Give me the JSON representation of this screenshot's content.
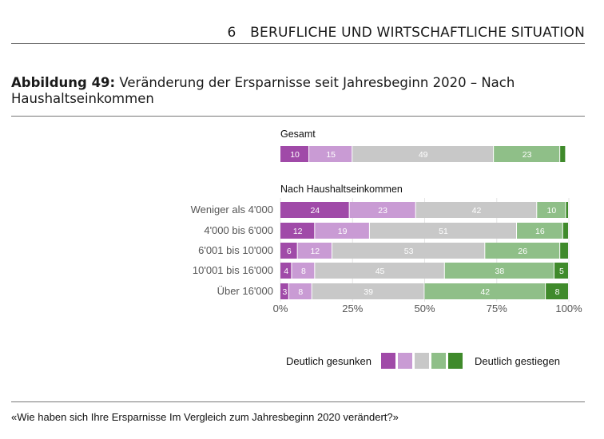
{
  "header": {
    "chapter_number": "6",
    "chapter_title": "BERUFLICHE UND WIRTSCHAFTLICHE SITUATION"
  },
  "figure": {
    "label": "Abbildung 49:",
    "title": "Veränderung der Ersparnisse seit Jahresbeginn 2020 – Nach Haushaltseinkommen"
  },
  "question": "«Wie haben sich Ihre Ersparnisse Im Vergleich zum Jahresbeginn 2020 verändert?»",
  "legend": {
    "left_label": "Deutlich gesunken",
    "right_label": "Deutlich gestiegen",
    "colors": [
      "#a04aa8",
      "#c99bd4",
      "#c8c8c8",
      "#8fbf88",
      "#3f8a2b"
    ]
  },
  "chart_data": {
    "type": "bar",
    "orientation": "horizontal-stacked-percent",
    "xlim": [
      0,
      100
    ],
    "xticks": [
      "0%",
      "25%",
      "50%",
      "75%",
      "100%"
    ],
    "colors": [
      "#a04aa8",
      "#c99bd4",
      "#c8c8c8",
      "#8fbf88",
      "#3f8a2b"
    ],
    "groups": [
      {
        "title": "Gesamt",
        "rows": [
          {
            "label": "",
            "values": [
              10,
              15,
              49,
              23,
              2
            ],
            "labels": [
              "10",
              "15",
              "49",
              "23",
              ""
            ]
          }
        ]
      },
      {
        "title": "Nach Haushaltseinkommen",
        "rows": [
          {
            "label": "Weniger als 4'000",
            "values": [
              24,
              23,
              42,
              10,
              1
            ],
            "labels": [
              "24",
              "23",
              "42",
              "10",
              ""
            ]
          },
          {
            "label": "4'000 bis 6'000",
            "values": [
              12,
              19,
              51,
              16,
              2
            ],
            "labels": [
              "12",
              "19",
              "51",
              "16",
              ""
            ]
          },
          {
            "label": "6'001 bis 10'000",
            "values": [
              6,
              12,
              53,
              26,
              3
            ],
            "labels": [
              "6",
              "12",
              "53",
              "26",
              ""
            ]
          },
          {
            "label": "10'001 bis 16'000",
            "values": [
              4,
              8,
              45,
              38,
              5
            ],
            "labels": [
              "4",
              "8",
              "45",
              "38",
              "5"
            ]
          },
          {
            "label": "Über 16'000",
            "values": [
              3,
              8,
              39,
              42,
              8
            ],
            "labels": [
              "3",
              "8",
              "39",
              "42",
              "8"
            ]
          }
        ]
      }
    ]
  }
}
